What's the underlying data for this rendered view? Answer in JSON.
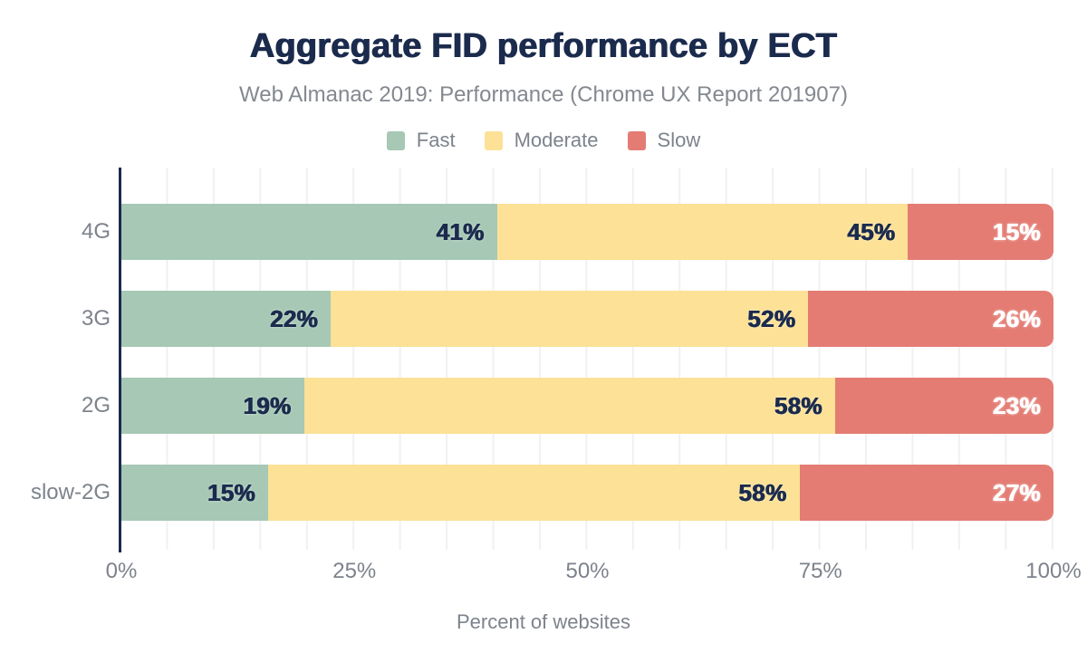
{
  "header": {
    "title": "Aggregate FID performance by ECT",
    "subtitle": "Web Almanac 2019: Performance (Chrome UX Report 201907)"
  },
  "chart_data": {
    "type": "bar",
    "orientation": "horizontal-stacked",
    "title": "Aggregate FID performance by ECT",
    "subtitle": "Web Almanac 2019: Performance (Chrome UX Report 201907)",
    "xlabel": "Percent of websites",
    "ylabel": "",
    "categories": [
      "4G",
      "3G",
      "2G",
      "slow-2G"
    ],
    "series": [
      {
        "name": "Fast",
        "color": "#a6c8b4",
        "label_color": "#1b2b4d",
        "values": [
          41,
          22,
          19,
          15
        ]
      },
      {
        "name": "Moderate",
        "color": "#fce196",
        "label_color": "#1b2b4d",
        "values": [
          45,
          52,
          58,
          58
        ]
      },
      {
        "name": "Slow",
        "color": "#e47c73",
        "label_color": "#ffffff",
        "values": [
          15,
          26,
          23,
          27
        ]
      }
    ],
    "value_suffix": "%",
    "xlim": [
      0,
      100
    ],
    "x_ticks": [
      {
        "label": "0%",
        "pct": 0
      },
      {
        "label": "25%",
        "pct": 25
      },
      {
        "label": "50%",
        "pct": 50
      },
      {
        "label": "75%",
        "pct": 75
      },
      {
        "label": "100%",
        "pct": 100
      }
    ],
    "grid": {
      "vertical_step_pct": 5,
      "color": "#f1f1f4"
    },
    "legend_position": "top-center",
    "axis_color": "#1b2b4d",
    "text_color_muted": "#7d828c"
  }
}
